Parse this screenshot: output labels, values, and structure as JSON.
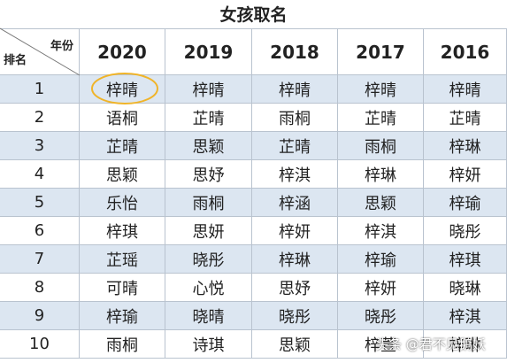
{
  "header": {
    "title": "女孩取名"
  },
  "table": {
    "corner_col_label": "年份",
    "corner_row_label": "排名",
    "columns": [
      "2020",
      "2019",
      "2018",
      "2017",
      "2016"
    ],
    "rows": [
      [
        "1",
        "梓晴",
        "梓晴",
        "梓晴",
        "梓晴",
        "梓晴"
      ],
      [
        "2",
        "语桐",
        "芷晴",
        "雨桐",
        "芷晴",
        "芷晴"
      ],
      [
        "3",
        "芷晴",
        "思颖",
        "芷晴",
        "雨桐",
        "梓琳"
      ],
      [
        "4",
        "思颖",
        "思妤",
        "梓淇",
        "梓琳",
        "梓妍"
      ],
      [
        "5",
        "乐怡",
        "雨桐",
        "梓涵",
        "思颖",
        "梓瑜"
      ],
      [
        "6",
        "梓琪",
        "思妍",
        "梓妍",
        "梓淇",
        "晓彤"
      ],
      [
        "7",
        "芷瑶",
        "晓彤",
        "梓琳",
        "梓瑜",
        "梓琪"
      ],
      [
        "8",
        "可晴",
        "心悦",
        "思妤",
        "梓妍",
        "晓琳"
      ],
      [
        "9",
        "梓瑜",
        "晓晴",
        "晓彤",
        "晓彤",
        "梓淇"
      ],
      [
        "10",
        "雨桐",
        "诗琪",
        "思颖",
        "梓萱",
        "梓琳"
      ]
    ]
  },
  "watermark": "头条 @君不见鹅妖"
}
